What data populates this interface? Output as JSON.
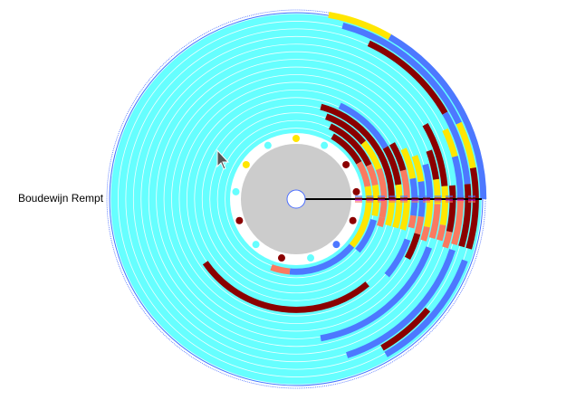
{
  "label": {
    "text": "Boudewijn Rempt"
  },
  "colors": {
    "background": "#ffffff",
    "disc": "#66ffff",
    "ring_line": "#ffffff",
    "outline": "#4d6fff",
    "hub": "#cccccc",
    "center_stroke": "#4d6fff",
    "needle": "#000000",
    "series": {
      "yellow": "#ffe600",
      "blue": "#4d78ff",
      "maroon": "#8b0000",
      "salmon": "#fa7a60"
    }
  },
  "dots": [
    {
      "color": "#ffe600"
    },
    {
      "color": "#66ffff"
    },
    {
      "color": "#8b0000"
    },
    {
      "color": "#8b0000"
    },
    {
      "color": "#8b0000"
    },
    {
      "color": "#4d78ff"
    },
    {
      "color": "#66ffff"
    },
    {
      "color": "#8b0000"
    },
    {
      "color": "#66ffff"
    },
    {
      "color": "#8b0000"
    },
    {
      "color": "#66ffff"
    },
    {
      "color": "#ffe600"
    },
    {
      "color": "#66ffff"
    }
  ],
  "arcs": [
    {
      "ring": 1,
      "start": 300,
      "end": 330,
      "color": "maroon"
    },
    {
      "ring": 1,
      "start": 330,
      "end": 350,
      "color": "salmon"
    },
    {
      "ring": 1,
      "start": 350,
      "end": 400,
      "color": "yellow"
    },
    {
      "ring": 1,
      "start": 400,
      "end": 455,
      "color": "blue"
    },
    {
      "ring": 1,
      "start": 455,
      "end": 470,
      "color": "salmon"
    },
    {
      "ring": 2,
      "start": 295,
      "end": 335,
      "color": "maroon"
    },
    {
      "ring": 2,
      "start": 335,
      "end": 350,
      "color": "salmon"
    },
    {
      "ring": 2,
      "start": 350,
      "end": 372,
      "color": "yellow"
    },
    {
      "ring": 2,
      "start": 375,
      "end": 400,
      "color": "blue"
    },
    {
      "ring": 3,
      "start": 290,
      "end": 320,
      "color": "maroon"
    },
    {
      "ring": 3,
      "start": 320,
      "end": 340,
      "color": "yellow"
    },
    {
      "ring": 3,
      "start": 340,
      "end": 372,
      "color": "salmon"
    },
    {
      "ring": 3,
      "start": 372,
      "end": 378,
      "color": "salmon"
    },
    {
      "ring": 4,
      "start": 285,
      "end": 360,
      "color": "maroon"
    },
    {
      "ring": 4,
      "start": 360,
      "end": 376,
      "color": "yellow"
    },
    {
      "ring": 5,
      "start": 295,
      "end": 330,
      "color": "blue"
    },
    {
      "ring": 5,
      "start": 330,
      "end": 352,
      "color": "maroon"
    },
    {
      "ring": 5,
      "start": 352,
      "end": 376,
      "color": "yellow"
    },
    {
      "ring": 6,
      "start": 330,
      "end": 345,
      "color": "maroon"
    },
    {
      "ring": 6,
      "start": 345,
      "end": 360,
      "color": "salmon"
    },
    {
      "ring": 6,
      "start": 360,
      "end": 376,
      "color": "yellow"
    },
    {
      "ring": 6,
      "start": 410,
      "end": 505,
      "color": "maroon"
    },
    {
      "ring": 7,
      "start": 335,
      "end": 350,
      "color": "yellow"
    },
    {
      "ring": 7,
      "start": 350,
      "end": 368,
      "color": "blue"
    },
    {
      "ring": 7,
      "start": 368,
      "end": 374,
      "color": "salmon"
    },
    {
      "ring": 7,
      "start": 380,
      "end": 400,
      "color": "blue"
    },
    {
      "ring": 8,
      "start": 340,
      "end": 352,
      "color": "yellow"
    },
    {
      "ring": 8,
      "start": 352,
      "end": 368,
      "color": "blue"
    },
    {
      "ring": 8,
      "start": 368,
      "end": 376,
      "color": "salmon"
    },
    {
      "ring": 8,
      "start": 376,
      "end": 388,
      "color": "maroon"
    },
    {
      "ring": 9,
      "start": 345,
      "end": 360,
      "color": "blue"
    },
    {
      "ring": 9,
      "start": 360,
      "end": 372,
      "color": "yellow"
    },
    {
      "ring": 9,
      "start": 372,
      "end": 378,
      "color": "salmon"
    },
    {
      "ring": 10,
      "start": 340,
      "end": 352,
      "color": "maroon"
    },
    {
      "ring": 10,
      "start": 352,
      "end": 362,
      "color": "yellow"
    },
    {
      "ring": 10,
      "start": 362,
      "end": 376,
      "color": "salmon"
    },
    {
      "ring": 10,
      "start": 380,
      "end": 440,
      "color": "blue"
    },
    {
      "ring": 11,
      "start": 330,
      "end": 355,
      "color": "maroon"
    },
    {
      "ring": 11,
      "start": 355,
      "end": 370,
      "color": "yellow"
    },
    {
      "ring": 11,
      "start": 370,
      "end": 376,
      "color": "salmon"
    },
    {
      "ring": 12,
      "start": 355,
      "end": 372,
      "color": "maroon"
    },
    {
      "ring": 12,
      "start": 372,
      "end": 378,
      "color": "salmon"
    },
    {
      "ring": 13,
      "start": 335,
      "end": 345,
      "color": "yellow"
    },
    {
      "ring": 13,
      "start": 345,
      "end": 360,
      "color": "blue"
    },
    {
      "ring": 13,
      "start": 360,
      "end": 376,
      "color": "salmon"
    },
    {
      "ring": 13,
      "start": 378,
      "end": 432,
      "color": "blue"
    },
    {
      "ring": 14,
      "start": 295,
      "end": 330,
      "color": "maroon"
    },
    {
      "ring": 14,
      "start": 330,
      "end": 355,
      "color": "blue"
    },
    {
      "ring": 14,
      "start": 355,
      "end": 376,
      "color": "maroon"
    },
    {
      "ring": 14,
      "start": 400,
      "end": 420,
      "color": "maroon"
    },
    {
      "ring": 15,
      "start": 285,
      "end": 335,
      "color": "blue"
    },
    {
      "ring": 15,
      "start": 335,
      "end": 350,
      "color": "yellow"
    },
    {
      "ring": 15,
      "start": 350,
      "end": 376,
      "color": "maroon"
    },
    {
      "ring": 15,
      "start": 380,
      "end": 420,
      "color": "blue"
    },
    {
      "ring": 16,
      "start": 280,
      "end": 300,
      "color": "yellow"
    },
    {
      "ring": 16,
      "start": 300,
      "end": 360,
      "color": "blue"
    }
  ]
}
